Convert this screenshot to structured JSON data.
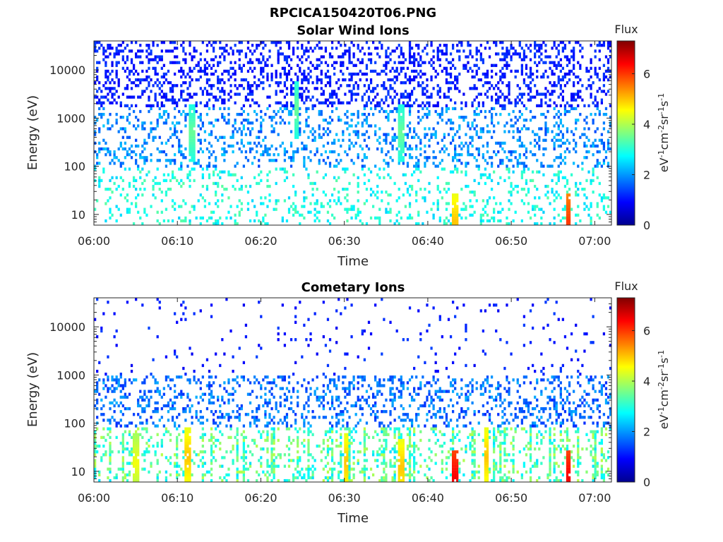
{
  "figure_title": "RPCICA150420T06.PNG",
  "colorbar": {
    "title": "Flux",
    "label_base": "eV",
    "label_exp1": "-1",
    "label_mid1": "cm",
    "label_exp2": "-2",
    "label_mid2": "sr",
    "label_exp3": "-1",
    "label_mid3": "s",
    "label_exp4": "-1",
    "ticks": [
      "0",
      "2",
      "4",
      "6"
    ],
    "tick_values": [
      0,
      2,
      4,
      6
    ],
    "range": [
      0,
      7.3
    ],
    "colormap": "jet"
  },
  "chart_data": [
    {
      "type": "heatmap",
      "title": "Solar Wind Ions",
      "xlabel": "Time",
      "ylabel": "Energy (eV)",
      "xlim": [
        "06:00",
        "07:02"
      ],
      "ylim": [
        6,
        40000
      ],
      "yscale": "log",
      "xticks": [
        "06:00",
        "06:10",
        "06:20",
        "06:30",
        "06:40",
        "06:50",
        "07:00"
      ],
      "yticks": [
        "10",
        "100",
        "1000",
        "10000"
      ],
      "ytick_values": [
        10,
        100,
        1000,
        10000
      ],
      "value_range": [
        0,
        7.3
      ],
      "value_notes": "sparse speckle; low energies (<100 eV) cyan-green ~2-4, high energies dark blue ~1; max ~6 near 06:57",
      "hotspots": [
        {
          "time": "06:11.8",
          "energy": 500,
          "value": 3.5
        },
        {
          "time": "06:24.3",
          "energy": 1500,
          "value": 3.5
        },
        {
          "time": "06:36.8",
          "energy": 500,
          "value": 3.5
        },
        {
          "time": "06:43.2",
          "energy": 7,
          "value": 5.0
        },
        {
          "time": "06:56.8",
          "energy": 7,
          "value": 6.0
        }
      ]
    },
    {
      "type": "heatmap",
      "title": "Cometary Ions",
      "xlabel": "Time",
      "ylabel": "Energy (eV)",
      "xlim": [
        "06:00",
        "07:02"
      ],
      "ylim": [
        6,
        40000
      ],
      "yscale": "log",
      "xticks": [
        "06:00",
        "06:10",
        "06:20",
        "06:30",
        "06:40",
        "06:50",
        "07:00"
      ],
      "yticks": [
        "10",
        "100",
        "1000",
        "10000"
      ],
      "ytick_values": [
        10,
        100,
        1000,
        10000
      ],
      "value_range": [
        0,
        7.3
      ],
      "value_notes": "sparse dots above 1000 eV; dense blue 100-1000 eV; vertical green-yellow streaks below 100 eV; red peaks near 06:43 and 06:57",
      "hotspots": [
        {
          "time": "06:05.0",
          "energy": 15,
          "value": 4.5
        },
        {
          "time": "06:11.2",
          "energy": 20,
          "value": 5.0
        },
        {
          "time": "06:30.2",
          "energy": 15,
          "value": 5.0
        },
        {
          "time": "06:36.8",
          "energy": 12,
          "value": 5.0
        },
        {
          "time": "06:43.2",
          "energy": 7,
          "value": 6.5
        },
        {
          "time": "06:47.0",
          "energy": 20,
          "value": 5.0
        },
        {
          "time": "06:56.8",
          "energy": 7,
          "value": 6.5
        }
      ]
    }
  ]
}
